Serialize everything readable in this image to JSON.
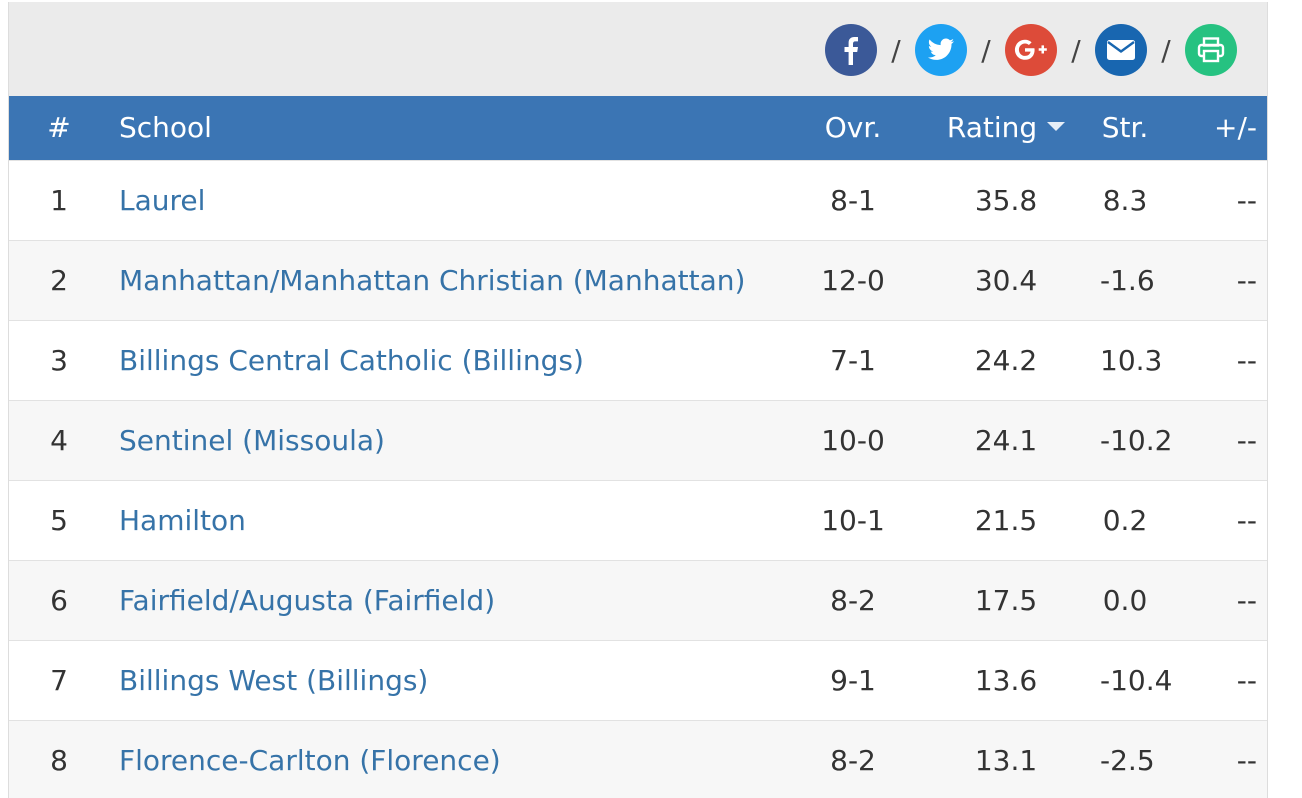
{
  "share": {
    "separator": "/",
    "buttons": [
      {
        "name": "facebook-share-button",
        "icon": "facebook-icon",
        "color": "#3b5998"
      },
      {
        "name": "twitter-share-button",
        "icon": "twitter-icon",
        "color": "#1da1f2"
      },
      {
        "name": "google-plus-share-button",
        "icon": "google-plus-icon",
        "color": "#dd4b39"
      },
      {
        "name": "email-share-button",
        "icon": "envelope-icon",
        "color": "#1866b0"
      },
      {
        "name": "print-button",
        "icon": "printer-icon",
        "color": "#26c281"
      }
    ]
  },
  "table": {
    "header_color": "#3b75b4",
    "link_color": "#3673a8",
    "sorted_column": "Rating",
    "sort_direction": "descending",
    "columns": {
      "rank": "#",
      "school": "School",
      "ovr": "Ovr.",
      "rating": "Rating",
      "str": "Str.",
      "plus_minus": "+/-"
    },
    "rows": [
      {
        "rank": "1",
        "school": "Laurel",
        "ovr": "8-1",
        "rating": "35.8",
        "str": "8.3",
        "plus_minus": "--"
      },
      {
        "rank": "2",
        "school": "Manhattan/Manhattan Christian (Manhattan)",
        "ovr": "12-0",
        "rating": "30.4",
        "str": "-1.6",
        "plus_minus": "--"
      },
      {
        "rank": "3",
        "school": "Billings Central Catholic (Billings)",
        "ovr": "7-1",
        "rating": "24.2",
        "str": "10.3",
        "plus_minus": "--"
      },
      {
        "rank": "4",
        "school": "Sentinel (Missoula)",
        "ovr": "10-0",
        "rating": "24.1",
        "str": "-10.2",
        "plus_minus": "--"
      },
      {
        "rank": "5",
        "school": "Hamilton",
        "ovr": "10-1",
        "rating": "21.5",
        "str": "0.2",
        "plus_minus": "--"
      },
      {
        "rank": "6",
        "school": "Fairfield/Augusta (Fairfield)",
        "ovr": "8-2",
        "rating": "17.5",
        "str": "0.0",
        "plus_minus": "--"
      },
      {
        "rank": "7",
        "school": "Billings West (Billings)",
        "ovr": "9-1",
        "rating": "13.6",
        "str": "-10.4",
        "plus_minus": "--"
      },
      {
        "rank": "8",
        "school": "Florence-Carlton (Florence)",
        "ovr": "8-2",
        "rating": "13.1",
        "str": "-2.5",
        "plus_minus": "--"
      }
    ]
  }
}
